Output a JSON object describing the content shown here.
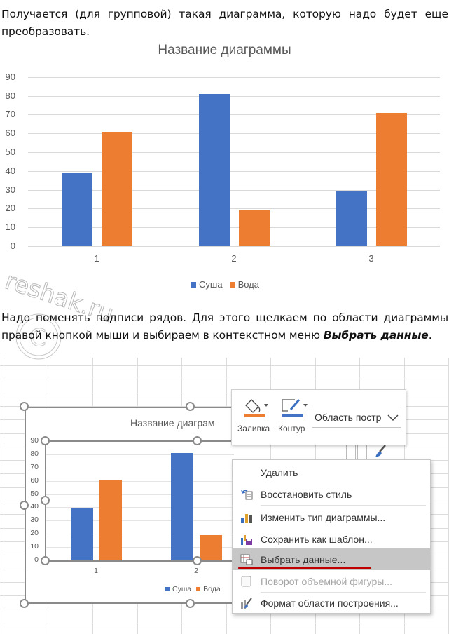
{
  "text": {
    "para1": "Получается (для групповой) такая диаграмма, которую надо будет еще преобразовать.",
    "para2_part1": "Надо поменять подписи рядов. Для этого щелкаем по области диаграммы правой кнопкой мыши и выбираем в контекстном меню ",
    "para2_bold": "Выбрать данные",
    "para2_end": "."
  },
  "watermark": "reshak.ru",
  "colors": {
    "series1": "#4472c4",
    "series2": "#ed7d31",
    "gridline": "#d9d9d9",
    "menu_highlight": "#c6c6c6",
    "underline_mark": "#c00000"
  },
  "chart_data": {
    "type": "bar",
    "title": "Название диаграммы",
    "categories": [
      "1",
      "2",
      "3"
    ],
    "series": [
      {
        "name": "Суша",
        "values": [
          39,
          81,
          29
        ]
      },
      {
        "name": "Вода",
        "values": [
          61,
          19,
          71
        ]
      }
    ],
    "xlabel": "",
    "ylabel": "",
    "ylim": [
      0,
      90
    ],
    "yticks": [
      "90",
      "80",
      "70",
      "60",
      "50",
      "40",
      "30",
      "20",
      "10",
      "0"
    ],
    "grid": true,
    "legend_position": "bottom"
  },
  "excel_chart": {
    "title": "Название диаграм",
    "yticks": [
      "90",
      "80",
      "70",
      "60",
      "50",
      "40",
      "30",
      "20",
      "10",
      "0"
    ],
    "categories": [
      "1",
      "2"
    ],
    "legend": [
      "Суша",
      "Вода"
    ]
  },
  "format_toolbar": {
    "fill_label": "Заливка",
    "outline_label": "Контур",
    "element_select_value": "Область постр"
  },
  "context_menu": {
    "items": [
      {
        "label": "Удалить",
        "icon": "none",
        "disabled": false,
        "highlighted": false
      },
      {
        "label": "Восстановить стиль",
        "icon": "reset-style-icon",
        "disabled": false,
        "highlighted": false
      },
      {
        "label": "Изменить тип диаграммы...",
        "icon": "chart-type-icon",
        "disabled": false,
        "highlighted": false
      },
      {
        "label": "Сохранить как шаблон...",
        "icon": "save-template-icon",
        "disabled": false,
        "highlighted": false
      },
      {
        "label": "Выбрать данные...",
        "icon": "select-data-icon",
        "disabled": false,
        "highlighted": true
      },
      {
        "label": "Поворот объемной фигуры...",
        "icon": "rotation-3d-icon",
        "disabled": true,
        "highlighted": false
      },
      {
        "label": "Формат области построения...",
        "icon": "format-area-icon",
        "disabled": false,
        "highlighted": false
      }
    ]
  }
}
